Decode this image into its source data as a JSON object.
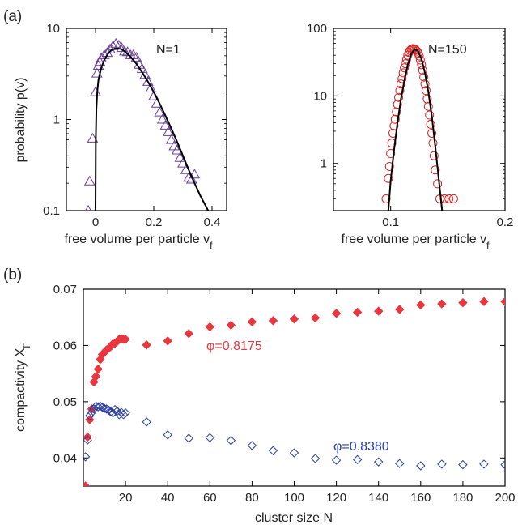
{
  "panel_labels": {
    "a": "(a)",
    "b": "(b)"
  },
  "chart_data": [
    {
      "type": "scatter",
      "panel": "(a) left",
      "annotation": "N=1",
      "xlabel": "free volume per particle v",
      "xlabel_sub": "f",
      "ylabel": "probability p(v)",
      "xlim": [
        -0.1,
        0.45
      ],
      "ylim": [
        0.1,
        10
      ],
      "yscale": "log",
      "xticks": [
        0,
        0.2,
        0.4
      ],
      "xtick_labels": [
        "0",
        "0.2",
        "0.4"
      ],
      "yticks": [
        0.1,
        1,
        10
      ],
      "ytick_labels": [
        "0.1",
        "1",
        "10"
      ],
      "marker": "triangle-open",
      "marker_color": "#6a3d9a",
      "line_color": "#000000",
      "points": [
        [
          -0.025,
          0.1
        ],
        [
          -0.02,
          0.21
        ],
        [
          -0.01,
          0.62
        ],
        [
          0.0,
          2.0
        ],
        [
          0.005,
          3.2
        ],
        [
          0.01,
          3.9
        ],
        [
          0.015,
          4.3
        ],
        [
          0.02,
          4.7
        ],
        [
          0.03,
          5.1
        ],
        [
          0.04,
          5.4
        ],
        [
          0.05,
          5.9
        ],
        [
          0.06,
          6.4
        ],
        [
          0.07,
          6.8
        ],
        [
          0.08,
          6.5
        ],
        [
          0.09,
          6.1
        ],
        [
          0.1,
          5.6
        ],
        [
          0.11,
          5.5
        ],
        [
          0.12,
          5.1
        ],
        [
          0.13,
          5.1
        ],
        [
          0.14,
          4.8
        ],
        [
          0.15,
          4.0
        ],
        [
          0.16,
          3.6
        ],
        [
          0.17,
          3.1
        ],
        [
          0.18,
          2.6
        ],
        [
          0.19,
          2.2
        ],
        [
          0.2,
          1.8
        ],
        [
          0.21,
          1.5
        ],
        [
          0.22,
          1.2
        ],
        [
          0.23,
          1.0
        ],
        [
          0.24,
          0.86
        ],
        [
          0.25,
          0.73
        ],
        [
          0.26,
          0.6
        ],
        [
          0.27,
          0.51
        ],
        [
          0.28,
          0.46
        ],
        [
          0.29,
          0.38
        ],
        [
          0.3,
          0.33
        ],
        [
          0.31,
          0.28
        ],
        [
          0.32,
          0.23
        ],
        [
          0.33,
          0.22
        ],
        [
          0.34,
          0.25
        ]
      ],
      "fit_curve": [
        [
          0.0,
          0.1
        ],
        [
          0.001,
          0.6
        ],
        [
          0.003,
          1.3
        ],
        [
          0.006,
          2.0
        ],
        [
          0.01,
          2.7
        ],
        [
          0.02,
          3.7
        ],
        [
          0.03,
          4.5
        ],
        [
          0.04,
          5.1
        ],
        [
          0.05,
          5.6
        ],
        [
          0.06,
          5.9
        ],
        [
          0.07,
          6.0
        ],
        [
          0.08,
          6.0
        ],
        [
          0.09,
          5.9
        ],
        [
          0.1,
          5.6
        ],
        [
          0.12,
          4.9
        ],
        [
          0.14,
          4.1
        ],
        [
          0.16,
          3.3
        ],
        [
          0.18,
          2.6
        ],
        [
          0.2,
          2.0
        ],
        [
          0.22,
          1.5
        ],
        [
          0.24,
          1.1
        ],
        [
          0.26,
          0.8
        ],
        [
          0.28,
          0.57
        ],
        [
          0.3,
          0.4
        ],
        [
          0.32,
          0.28
        ],
        [
          0.34,
          0.2
        ],
        [
          0.36,
          0.145
        ],
        [
          0.38,
          0.11
        ],
        [
          0.39,
          0.095
        ]
      ]
    },
    {
      "type": "scatter",
      "panel": "(a) right",
      "annotation": "N=150",
      "xlabel": "free volume per particle v",
      "xlabel_sub": "f",
      "ylabel": "",
      "xlim": [
        0.05,
        0.2
      ],
      "ylim": [
        0.2,
        100
      ],
      "yscale": "log",
      "xticks": [
        0.1,
        0.2
      ],
      "xtick_labels": [
        "0.1",
        "0.2"
      ],
      "yticks": [
        1,
        10,
        100
      ],
      "ytick_labels": [
        "1",
        "10",
        "100"
      ],
      "marker": "circle-open",
      "marker_color": "#d62728",
      "line_color": "#000000",
      "points": [
        [
          0.096,
          0.3
        ],
        [
          0.098,
          0.6
        ],
        [
          0.099,
          0.9
        ],
        [
          0.1,
          1.4
        ],
        [
          0.101,
          2.0
        ],
        [
          0.102,
          2.8
        ],
        [
          0.103,
          3.6
        ],
        [
          0.104,
          4.5
        ],
        [
          0.105,
          5.8
        ],
        [
          0.106,
          7.5
        ],
        [
          0.107,
          9.5
        ],
        [
          0.108,
          12
        ],
        [
          0.109,
          15
        ],
        [
          0.11,
          18
        ],
        [
          0.111,
          22
        ],
        [
          0.112,
          26
        ],
        [
          0.113,
          30
        ],
        [
          0.114,
          35
        ],
        [
          0.115,
          40
        ],
        [
          0.116,
          44
        ],
        [
          0.117,
          47
        ],
        [
          0.118,
          49
        ],
        [
          0.119,
          50
        ],
        [
          0.12,
          50
        ],
        [
          0.121,
          49
        ],
        [
          0.122,
          48
        ],
        [
          0.123,
          46
        ],
        [
          0.124,
          43
        ],
        [
          0.125,
          39
        ],
        [
          0.126,
          34
        ],
        [
          0.127,
          29
        ],
        [
          0.128,
          24
        ],
        [
          0.129,
          19
        ],
        [
          0.13,
          15
        ],
        [
          0.131,
          12
        ],
        [
          0.132,
          9
        ],
        [
          0.133,
          7
        ],
        [
          0.134,
          5.2
        ],
        [
          0.135,
          3.8
        ],
        [
          0.136,
          2.8
        ],
        [
          0.137,
          2.0
        ],
        [
          0.138,
          1.3
        ],
        [
          0.139,
          0.8
        ],
        [
          0.141,
          0.5
        ],
        [
          0.143,
          0.3
        ],
        [
          0.147,
          0.3
        ],
        [
          0.151,
          0.3
        ],
        [
          0.155,
          0.3
        ]
      ],
      "fit_curve": [
        [
          0.098,
          0.2
        ],
        [
          0.1,
          0.55
        ],
        [
          0.103,
          1.6
        ],
        [
          0.106,
          4.0
        ],
        [
          0.109,
          9.0
        ],
        [
          0.112,
          17
        ],
        [
          0.115,
          29
        ],
        [
          0.118,
          42
        ],
        [
          0.121,
          49
        ],
        [
          0.124,
          46
        ],
        [
          0.127,
          35
        ],
        [
          0.13,
          22
        ],
        [
          0.133,
          11.5
        ],
        [
          0.136,
          5.0
        ],
        [
          0.139,
          1.8
        ],
        [
          0.142,
          0.6
        ],
        [
          0.145,
          0.2
        ]
      ]
    },
    {
      "type": "scatter",
      "panel": "(b)",
      "xlabel": "cluster size N",
      "ylabel": "compactivity X",
      "ylabel_sub": "Γ",
      "xlim": [
        0,
        200
      ],
      "ylim": [
        0.035,
        0.07
      ],
      "xticks": [
        20,
        40,
        60,
        80,
        100,
        120,
        140,
        160,
        180,
        200
      ],
      "xtick_labels": [
        "20",
        "40",
        "60",
        "80",
        "100",
        "120",
        "140",
        "160",
        "180",
        "200"
      ],
      "yticks": [
        0.04,
        0.05,
        0.06,
        0.07
      ],
      "ytick_labels": [
        "0.04",
        "0.05",
        "0.06",
        "0.07"
      ],
      "series": [
        {
          "name": "φ=0.8175",
          "marker": "diamond-filled",
          "color": "#e8373f",
          "x": [
            1,
            2,
            3,
            4,
            5,
            6,
            7,
            8,
            9,
            10,
            11,
            12,
            13,
            14,
            15,
            16,
            17,
            18,
            19,
            20,
            30,
            40,
            50,
            60,
            70,
            80,
            90,
            100,
            110,
            120,
            130,
            140,
            150,
            160,
            170,
            180,
            190,
            200
          ],
          "y": [
            0.035,
            0.0437,
            0.0468,
            0.0487,
            0.0535,
            0.0545,
            0.0558,
            0.0575,
            0.0584,
            0.0588,
            0.0592,
            0.0595,
            0.0598,
            0.0603,
            0.0604,
            0.0607,
            0.0611,
            0.0612,
            0.0611,
            0.0611,
            0.0601,
            0.0608,
            0.0621,
            0.0633,
            0.0636,
            0.0642,
            0.0644,
            0.0647,
            0.0649,
            0.0657,
            0.0659,
            0.0661,
            0.0664,
            0.0672,
            0.0674,
            0.0676,
            0.0678,
            0.0678
          ]
        },
        {
          "name": "φ=0.8380",
          "marker": "diamond-open",
          "color": "#2b3f9e",
          "x": [
            1,
            2,
            3,
            4,
            5,
            6,
            7,
            8,
            9,
            10,
            11,
            12,
            13,
            14,
            15,
            16,
            17,
            18,
            19,
            20,
            30,
            40,
            50,
            60,
            70,
            80,
            90,
            100,
            110,
            120,
            130,
            140,
            150,
            160,
            170,
            180,
            190,
            200
          ],
          "y": [
            0.0402,
            0.0432,
            0.0475,
            0.0481,
            0.0487,
            0.0492,
            0.0491,
            0.0492,
            0.049,
            0.0488,
            0.0487,
            0.0485,
            0.0482,
            0.048,
            0.0486,
            0.0483,
            0.0477,
            0.0481,
            0.0477,
            0.048,
            0.0464,
            0.0441,
            0.0435,
            0.0436,
            0.0431,
            0.0422,
            0.0413,
            0.0409,
            0.0399,
            0.0396,
            0.0397,
            0.0393,
            0.039,
            0.0386,
            0.0389,
            0.0388,
            0.0389,
            0.0388
          ]
        }
      ]
    }
  ]
}
